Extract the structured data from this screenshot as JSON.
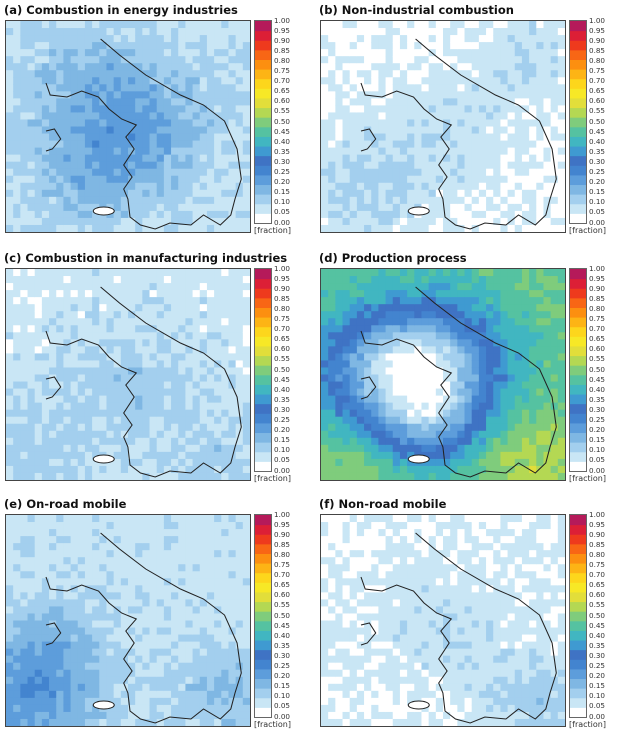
{
  "colorbar": {
    "ticks": [
      "1.00",
      "0.95",
      "0.90",
      "0.85",
      "0.80",
      "0.75",
      "0.70",
      "0.65",
      "0.60",
      "0.55",
      "0.50",
      "0.45",
      "0.40",
      "0.35",
      "0.30",
      "0.25",
      "0.20",
      "0.15",
      "0.10",
      "0.05",
      "0.00"
    ],
    "colors": [
      "#ffffff",
      "#c9e6f5",
      "#a3cfee",
      "#7fb7e3",
      "#5d9ddb",
      "#4384cf",
      "#3f73c4",
      "#3f9ad1",
      "#41b6c1",
      "#55c2a1",
      "#7fcc7c",
      "#b4d853",
      "#e2de3a",
      "#f7e826",
      "#fdd61c",
      "#fdb415",
      "#fc8f10",
      "#f86615",
      "#ee3a1d",
      "#dc1f36",
      "#b51a5a"
    ],
    "unit": "[fraction]"
  },
  "panels": [
    {
      "id": "a",
      "title": "(a) Combustion in energy industries",
      "field": {
        "base": 0.08,
        "blobs": [
          [
            0.48,
            0.48,
            0.35,
            0.14
          ],
          [
            0.35,
            0.78,
            0.25,
            0.05
          ],
          [
            0.3,
            0.2,
            0.2,
            0.03
          ]
        ]
      }
    },
    {
      "id": "b",
      "title": "(b) Non-industrial combustion",
      "field": {
        "base": 0.04,
        "blobs": [
          [
            0.5,
            0.55,
            0.32,
            0.05
          ],
          [
            0.15,
            0.8,
            0.25,
            0.07
          ],
          [
            0.85,
            0.15,
            0.25,
            0.05
          ]
        ]
      }
    },
    {
      "id": "c",
      "title": "(c) Combustion in manufacturing industries",
      "field": {
        "base": 0.07,
        "blobs": [
          [
            0.5,
            0.55,
            0.28,
            0.06
          ],
          [
            0.1,
            0.9,
            0.3,
            0.05
          ],
          [
            0.9,
            0.9,
            0.25,
            0.05
          ]
        ]
      }
    },
    {
      "id": "d",
      "title": "(d) Production process",
      "field": {
        "base": 0.5,
        "blobs": [
          [
            0.45,
            0.45,
            0.3,
            -0.35
          ],
          [
            0.2,
            0.5,
            0.3,
            -0.2
          ],
          [
            0.45,
            0.75,
            0.22,
            -0.2
          ],
          [
            0.85,
            0.95,
            0.25,
            0.08
          ],
          [
            0.1,
            0.95,
            0.25,
            0.05
          ]
        ]
      }
    },
    {
      "id": "e",
      "title": "(e) On-road mobile",
      "field": {
        "base": 0.08,
        "blobs": [
          [
            0.1,
            0.85,
            0.3,
            0.16
          ],
          [
            0.2,
            0.55,
            0.2,
            0.04
          ],
          [
            0.9,
            0.85,
            0.2,
            0.08
          ]
        ]
      }
    },
    {
      "id": "f",
      "title": "(f) Non-road mobile",
      "field": {
        "base": 0.05,
        "blobs": [
          [
            0.5,
            0.55,
            0.3,
            0.04
          ],
          [
            0.9,
            0.9,
            0.2,
            0.08
          ]
        ]
      }
    }
  ]
}
